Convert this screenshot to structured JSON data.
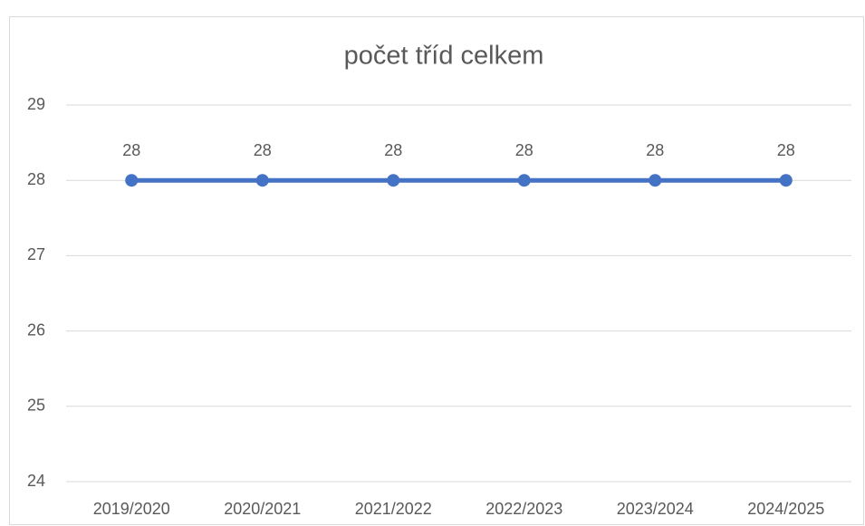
{
  "chart_data": {
    "type": "line",
    "title": "počet tříd celkem",
    "categories": [
      "2019/2020",
      "2020/2021",
      "2021/2022",
      "2022/2023",
      "2023/2024",
      "2024/2025"
    ],
    "series": [
      {
        "name": "počet tříd celkem",
        "color": "#4472c4",
        "values": [
          28,
          28,
          28,
          28,
          28,
          28
        ]
      }
    ],
    "ylim": [
      24,
      29
    ],
    "yticks": [
      24,
      25,
      26,
      27,
      28,
      29
    ],
    "grid": true
  }
}
